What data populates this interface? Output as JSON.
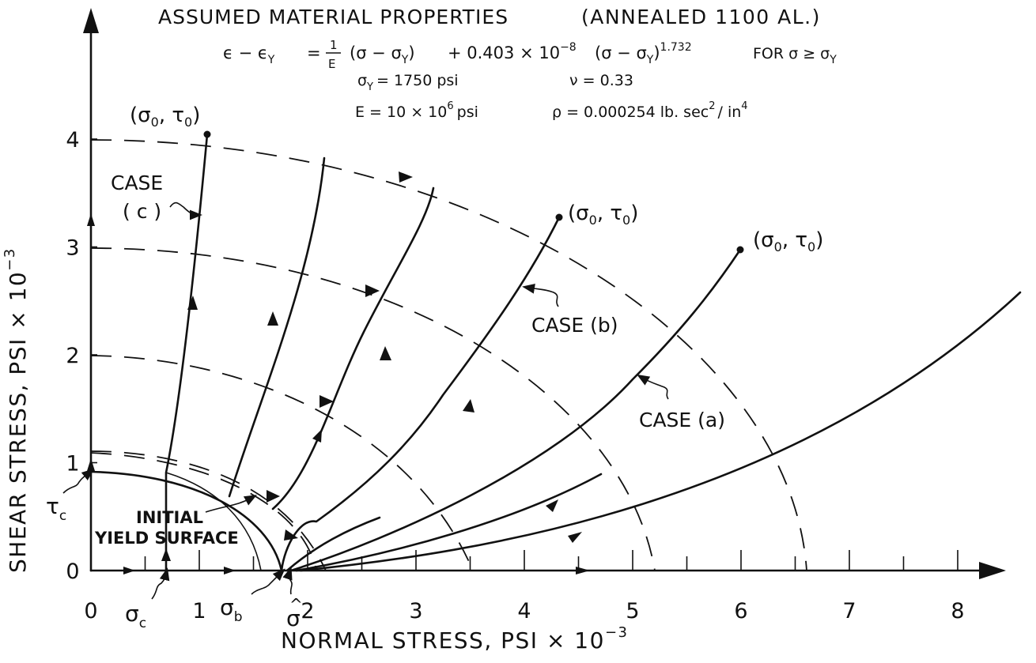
{
  "header": {
    "title": "ASSUMED MATERIAL PROPERTIES",
    "title_material": "(ANNEALED 1100 AL.)",
    "equation_lhs": "ϵ − ϵ",
    "equation_lhs_sub": "Y",
    "equation_eq": "=",
    "fraction_num": "1",
    "fraction_den": "E",
    "equation_term1": "(σ − σ",
    "equation_term1_sub": "Y",
    "equation_term1_close": ")",
    "equation_plus": "+ 0.403 × 10",
    "equation_plus_exp": "−8",
    "equation_term2": "(σ − σ",
    "equation_term2_sub": "Y",
    "equation_term2_close": ")",
    "equation_term2_exp": "1.732",
    "equation_condition": "FOR σ ≥ σ",
    "equation_condition_sub": "Y",
    "sigma_y_sym": "σ",
    "sigma_y_sub": "Y",
    "sigma_y_value": "= 1750 psi",
    "nu": "ν = 0.33",
    "modulus": "E  =  10 × 10",
    "modulus_exp": "6",
    "modulus_unit": "psi",
    "density": "ρ = 0.000254 lb. sec",
    "density_exp": "2",
    "density_unit": "/ in",
    "density_unit_exp": "4"
  },
  "axes": {
    "x_label": "NORMAL   STRESS,    PSI × 10",
    "x_label_exp": "−3",
    "y_label": "SHEAR    STRESS,    PSI × 10",
    "y_label_exp": "−3",
    "x_ticks": [
      "0",
      "1",
      "2",
      "3",
      "4",
      "5",
      "6",
      "7",
      "8"
    ],
    "y_ticks": [
      "0",
      "1",
      "2",
      "3",
      "4"
    ]
  },
  "point_labels": {
    "sigma_c": "σ",
    "sigma_c_sub": "c",
    "sigma_b": "σ",
    "sigma_b_sub": "b",
    "sigma_hat": "σ",
    "sigma_hat_accent": "^",
    "tau_c": "τ",
    "tau_c_sub": "c",
    "endpoint": "(σ",
    "endpoint_sub": "0",
    "endpoint_mid": ", τ",
    "endpoint_sub2": "0",
    "endpoint_close": ")"
  },
  "annotations": {
    "case_a": "CASE (a)",
    "case_b": "CASE (b)",
    "case_c_line1": "CASE",
    "case_c_line2": "( c )",
    "initial_line1": "INITIAL",
    "initial_line2": "YIELD SURFACE"
  },
  "diagram_data": {
    "initial_yield_surface_radius": 1.75,
    "dashed_arc_radii": [
      2.0,
      3.55,
      5.24,
      7.0
    ],
    "loading_endpoints": [
      {
        "case": "c",
        "sigma_0": 1.1,
        "tau_0": 4.05
      },
      {
        "case": "b",
        "sigma_0": 4.35,
        "tau_0": 3.3
      },
      {
        "case": "a",
        "sigma_0": 6.0,
        "tau_0": 3.0
      }
    ]
  }
}
